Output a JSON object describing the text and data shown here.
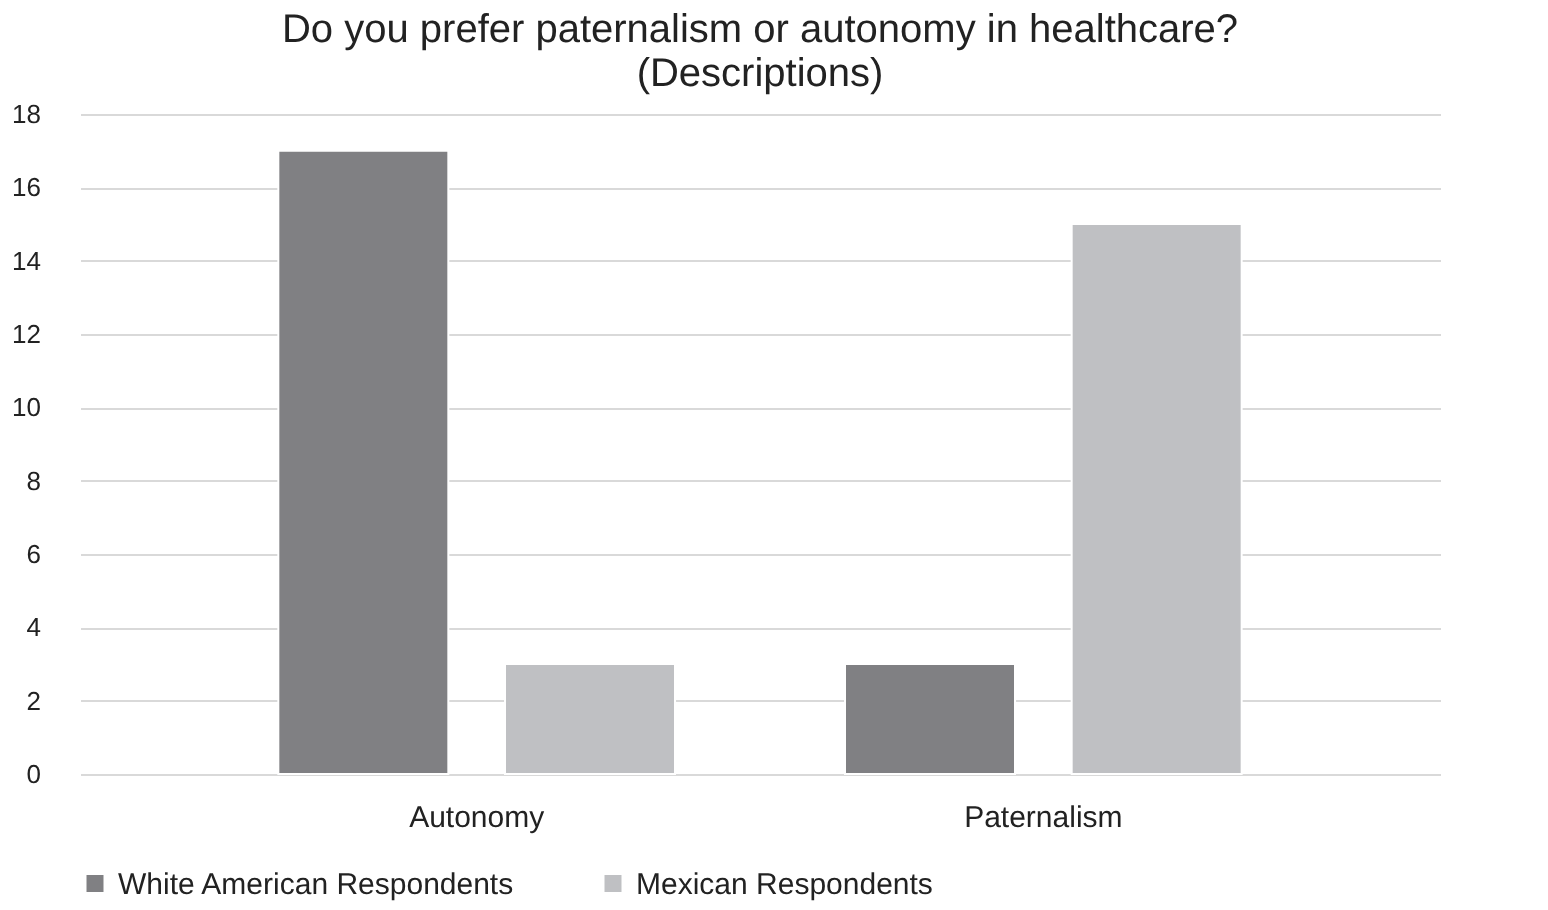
{
  "chart_data": {
    "type": "bar",
    "title": [
      "Do you prefer paternalism or autonomy in healthcare?",
      "(Descriptions)"
    ],
    "categories": [
      "Autonomy",
      "Paternalism"
    ],
    "series": [
      {
        "name": "White American Respondents",
        "color": "#808083",
        "values": [
          17,
          3
        ]
      },
      {
        "name": "Mexican Respondents",
        "color": "#bfc0c3",
        "values": [
          3,
          15
        ]
      }
    ],
    "ylim": [
      0,
      18
    ],
    "yticks": [
      0,
      2,
      4,
      6,
      8,
      10,
      12,
      14,
      16,
      18
    ],
    "grid": "y",
    "legend": "bottom"
  }
}
